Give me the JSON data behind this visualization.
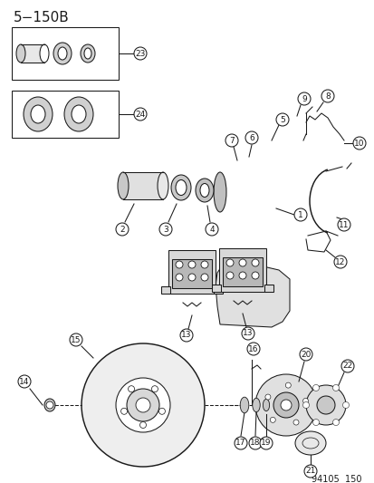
{
  "title": "5−150B",
  "footer": "94105  150",
  "bg_color": "#ffffff",
  "fg_color": "#1a1a1a",
  "title_fontsize": 11,
  "footer_fontsize": 7,
  "label_fontsize": 6.5,
  "fig_width": 4.14,
  "fig_height": 5.33,
  "dpi": 100,
  "lw": 0.75
}
